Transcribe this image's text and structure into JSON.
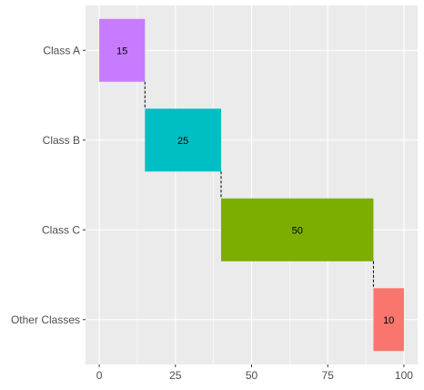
{
  "chart_data": {
    "type": "bar",
    "orientation": "horizontal-waterfall",
    "categories": [
      "Class A",
      "Class B",
      "Class C",
      "Other Classes"
    ],
    "starts": [
      0,
      15,
      40,
      90
    ],
    "values": [
      15,
      25,
      50,
      10
    ],
    "labels": [
      "15",
      "25",
      "50",
      "10"
    ],
    "colors": [
      "#C77CFF",
      "#00BFC4",
      "#7CAE00",
      "#F8766D"
    ],
    "xlim": [
      -4.5,
      104.5
    ],
    "xticks": [
      0,
      25,
      50,
      75,
      100
    ],
    "xtick_labels": [
      "0",
      "25",
      "50",
      "75",
      "100"
    ],
    "connectors": "dashed",
    "grid": true,
    "panel_background": "#EBEBEB",
    "grid_color": "#FFFFFF"
  }
}
